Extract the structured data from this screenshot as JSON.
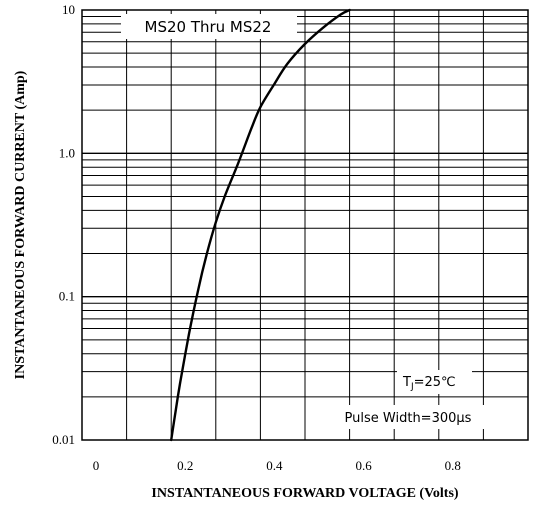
{
  "chart_data": {
    "type": "line",
    "title": "",
    "xlabel": "INSTANTANEOUS FORWARD VOLTAGE (Volts)",
    "ylabel": "INSTANTANEOUS FORWARD CURRENT (Amp)",
    "xlim": [
      0,
      1.0
    ],
    "ylim": [
      0.01,
      10
    ],
    "yscale": "log",
    "grid": true,
    "x_ticks": [
      {
        "value": 0,
        "label": "0"
      },
      {
        "value": 0.2,
        "label": "0.2"
      },
      {
        "value": 0.4,
        "label": "0.4"
      },
      {
        "value": 0.6,
        "label": "0.6"
      },
      {
        "value": 0.8,
        "label": "0.8"
      }
    ],
    "y_ticks": [
      {
        "value": 0.01,
        "label": "0.01"
      },
      {
        "value": 0.1,
        "label": "0.1"
      },
      {
        "value": 1,
        "label": "1.0"
      },
      {
        "value": 10,
        "label": "10"
      }
    ],
    "series": [
      {
        "name": "",
        "color": "#000000",
        "x": [
          0.2,
          0.21,
          0.22,
          0.24,
          0.26,
          0.28,
          0.3,
          0.32,
          0.35,
          0.38,
          0.4,
          0.43,
          0.46,
          0.5,
          0.54,
          0.58,
          0.6
        ],
        "y": [
          0.01,
          0.016,
          0.025,
          0.055,
          0.11,
          0.2,
          0.33,
          0.5,
          0.85,
          1.5,
          2.1,
          3.0,
          4.2,
          5.8,
          7.5,
          9.3,
          10.0
        ]
      }
    ],
    "annotations": {
      "device": "MS20 Thru MS22",
      "tj_prefix": "T",
      "tj_sub": "J",
      "tj_suffix": "=25℃",
      "pulse": "Pulse Width=300μs"
    }
  }
}
